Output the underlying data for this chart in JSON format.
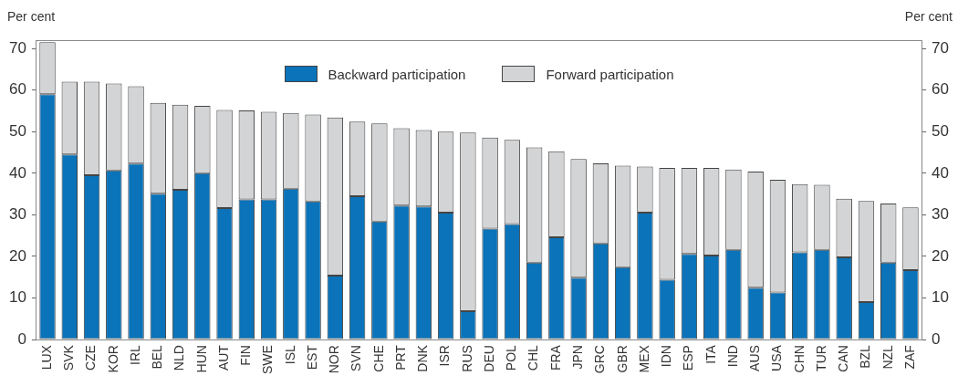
{
  "chart_data": {
    "type": "bar",
    "stacked": true,
    "ylabel": "Per cent",
    "y2label": "Per cent",
    "categories": [
      "LUX",
      "SVK",
      "CZE",
      "KOR",
      "IRL",
      "BEL",
      "NLD",
      "HUN",
      "AUT",
      "FIN",
      "SWE",
      "ISL",
      "EST",
      "NOR",
      "SVN",
      "CHE",
      "PRT",
      "DNK",
      "ISR",
      "RUS",
      "DEU",
      "POL",
      "CHL",
      "FRA",
      "JPN",
      "GRC",
      "GBR",
      "MEX",
      "IDN",
      "ESP",
      "ITA",
      "IND",
      "AUS",
      "USA",
      "CHN",
      "TUR",
      "CAN",
      "BZL",
      "NZL",
      "ZAF"
    ],
    "series": [
      {
        "name": "Backward participation",
        "color": "#0a73b9",
        "values": [
          59,
          44.5,
          39.5,
          40.7,
          42.3,
          35.1,
          36,
          40,
          31.6,
          33.7,
          33.7,
          36.3,
          33.2,
          15.4,
          34.5,
          28.4,
          32.2,
          32,
          30.5,
          6.8,
          26.7,
          27.8,
          18.5,
          24.6,
          14.9,
          23.1,
          17.4,
          30.5,
          14.4,
          20.6,
          20.2,
          21.6,
          12.5,
          11.3,
          21,
          21.6,
          19.8,
          9,
          18.5,
          16.7
        ]
      },
      {
        "name": "Forward participation",
        "color": "#d3d4d6",
        "values": [
          12.5,
          17.5,
          22.5,
          20.9,
          18.6,
          21.8,
          20.5,
          16.2,
          23.6,
          21.4,
          21.1,
          18.2,
          20.9,
          38,
          17.9,
          23.6,
          18.6,
          18.4,
          19.5,
          43,
          21.9,
          20.2,
          27.7,
          20.7,
          28.5,
          19.3,
          24.4,
          11.1,
          26.9,
          20.7,
          21.1,
          19.3,
          27.9,
          27.1,
          16.4,
          15.6,
          14.1,
          24.3,
          14.2,
          15.1
        ]
      }
    ],
    "ylim": [
      0,
      72
    ],
    "yticks": [
      0,
      10,
      20,
      30,
      40,
      50,
      60,
      70
    ],
    "y2lim": [
      0,
      72
    ],
    "y2ticks": [
      0,
      10,
      20,
      30,
      40,
      50,
      60,
      70
    ],
    "grid": false,
    "legend": "top"
  }
}
